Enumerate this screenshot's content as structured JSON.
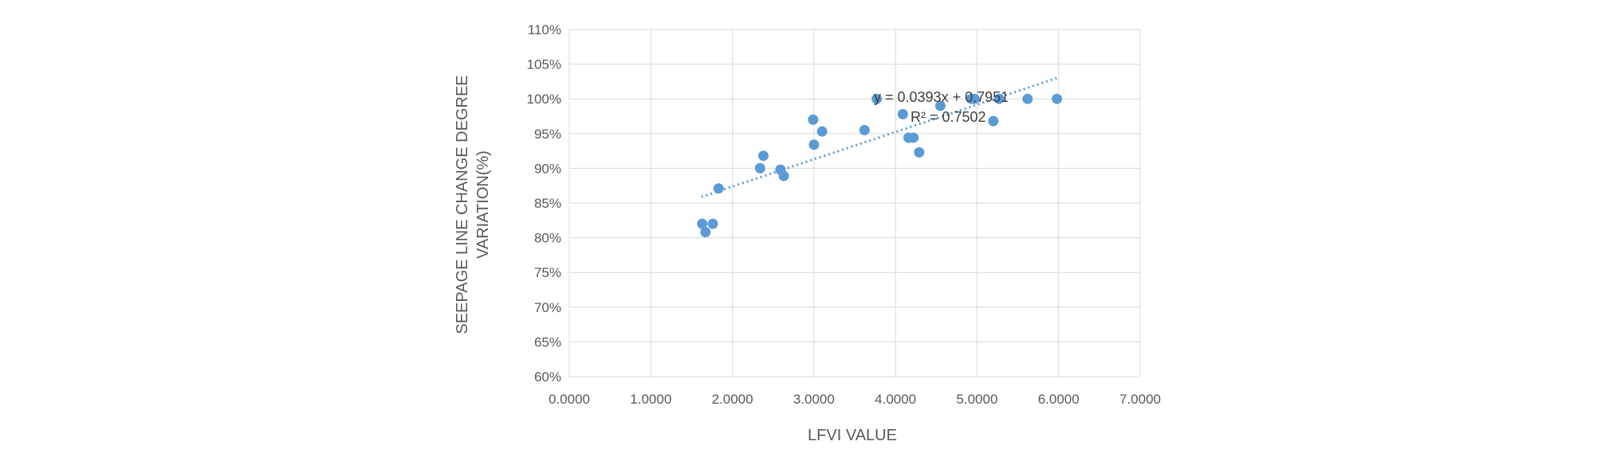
{
  "chart_data": {
    "type": "scatter",
    "title": "",
    "xlabel": "LFVI VALUE",
    "ylabel": "SEEPAGE  LINE CHANGE DEGREE VARIATION(%)",
    "ylabel_lines": [
      "SEEPAGE  LINE CHANGE DEGREE",
      "VARIATION(%)"
    ],
    "xlim": [
      0,
      7
    ],
    "ylim": [
      0.6,
      1.1
    ],
    "x_ticks": [
      0,
      1,
      2,
      3,
      4,
      5,
      6,
      7
    ],
    "x_tick_labels": [
      "0.0000",
      "1.0000",
      "2.0000",
      "3.0000",
      "4.0000",
      "5.0000",
      "6.0000",
      "7.0000"
    ],
    "y_ticks": [
      0.6,
      0.65,
      0.7,
      0.75,
      0.8,
      0.85,
      0.9,
      0.95,
      1.0,
      1.05,
      1.1
    ],
    "y_tick_labels": [
      "60%",
      "65%",
      "70%",
      "75%",
      "80%",
      "85%",
      "90%",
      "95%",
      "100%",
      "105%",
      "110%"
    ],
    "grid": true,
    "color": "#5b9bd5",
    "points": [
      {
        "x": 1.63,
        "y": 0.82
      },
      {
        "x": 1.67,
        "y": 0.808
      },
      {
        "x": 1.76,
        "y": 0.82
      },
      {
        "x": 1.83,
        "y": 0.871
      },
      {
        "x": 2.34,
        "y": 0.9
      },
      {
        "x": 2.38,
        "y": 0.918
      },
      {
        "x": 2.59,
        "y": 0.898
      },
      {
        "x": 2.63,
        "y": 0.889
      },
      {
        "x": 2.99,
        "y": 0.97
      },
      {
        "x": 3.0,
        "y": 0.934
      },
      {
        "x": 3.1,
        "y": 0.953
      },
      {
        "x": 3.62,
        "y": 0.955
      },
      {
        "x": 3.77,
        "y": 1.0
      },
      {
        "x": 4.09,
        "y": 0.978
      },
      {
        "x": 4.16,
        "y": 0.944
      },
      {
        "x": 4.22,
        "y": 0.944
      },
      {
        "x": 4.29,
        "y": 0.923
      },
      {
        "x": 4.55,
        "y": 0.99
      },
      {
        "x": 4.93,
        "y": 1.0
      },
      {
        "x": 4.97,
        "y": 1.0
      },
      {
        "x": 5.2,
        "y": 0.968
      },
      {
        "x": 5.27,
        "y": 1.0
      },
      {
        "x": 5.62,
        "y": 1.0
      },
      {
        "x": 5.98,
        "y": 1.0
      }
    ],
    "trendline": {
      "slope": 0.0393,
      "intercept": 0.7951,
      "x_range": [
        1.62,
        5.98
      ],
      "equation_label": "y = 0.0393x + 0.7951",
      "r2_label": "R² = 0.7502"
    }
  }
}
